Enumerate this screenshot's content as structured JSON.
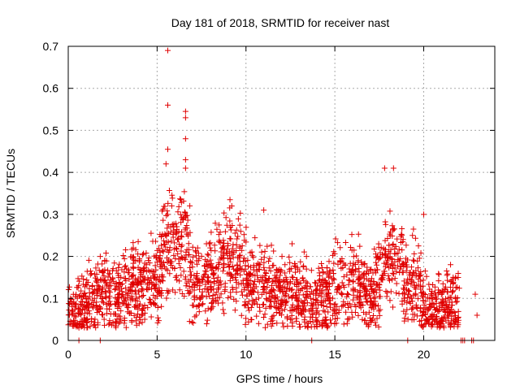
{
  "chart_data": {
    "type": "scatter",
    "title": "Day 181 of 2018, SRMTID for receiver nast",
    "xlabel": "GPS time / hours",
    "ylabel": "SRMTID / TECUs",
    "xlim": [
      0,
      24
    ],
    "ylim": [
      0,
      0.7
    ],
    "xticks": [
      0,
      5,
      10,
      15,
      20
    ],
    "yticks": [
      0,
      0.1,
      0.2,
      0.3,
      0.4,
      0.5,
      0.6,
      0.7
    ],
    "xtick_labels": [
      "0",
      "5",
      "10",
      "15",
      "20"
    ],
    "ytick_labels": [
      "0",
      "0.1",
      "0.2",
      "0.3",
      "0.4",
      "0.5",
      "0.6",
      "0.7"
    ],
    "grid": true,
    "marker": "+",
    "colors": {
      "series": "#e00000",
      "grid": "#aaaaaa",
      "axis": "#000000"
    },
    "series": [
      {
        "name": "SRMTID",
        "profile_x": [
          0,
          0.5,
          1,
          1.5,
          2,
          2.5,
          3,
          3.5,
          4,
          4.5,
          5,
          5.3,
          5.6,
          6,
          6.5,
          7,
          7.5,
          8,
          8.5,
          9,
          9.5,
          10,
          10.5,
          11,
          11.5,
          12,
          12.5,
          13,
          13.5,
          14,
          14.5,
          15,
          15.5,
          16,
          16.5,
          17,
          17.5,
          18,
          18.5,
          19,
          19.5,
          20,
          20.5,
          21,
          21.5,
          22
        ],
        "profile_y": [
          0.07,
          0.06,
          0.08,
          0.09,
          0.11,
          0.09,
          0.11,
          0.13,
          0.12,
          0.14,
          0.15,
          0.19,
          0.23,
          0.22,
          0.24,
          0.15,
          0.13,
          0.15,
          0.17,
          0.2,
          0.19,
          0.15,
          0.13,
          0.14,
          0.12,
          0.11,
          0.12,
          0.11,
          0.09,
          0.08,
          0.1,
          0.13,
          0.14,
          0.14,
          0.12,
          0.11,
          0.15,
          0.2,
          0.2,
          0.16,
          0.14,
          0.08,
          0.07,
          0.08,
          0.09,
          0.08
        ],
        "notable_points": [
          {
            "x": 5.6,
            "y": 0.69
          },
          {
            "x": 5.6,
            "y": 0.56
          },
          {
            "x": 6.6,
            "y": 0.545
          },
          {
            "x": 6.6,
            "y": 0.53
          },
          {
            "x": 6.6,
            "y": 0.48
          },
          {
            "x": 6.6,
            "y": 0.43
          },
          {
            "x": 5.6,
            "y": 0.455
          },
          {
            "x": 5.5,
            "y": 0.42
          },
          {
            "x": 6.6,
            "y": 0.41
          },
          {
            "x": 17.8,
            "y": 0.41
          },
          {
            "x": 18.3,
            "y": 0.41
          },
          {
            "x": 9.1,
            "y": 0.335
          },
          {
            "x": 9.2,
            "y": 0.32
          },
          {
            "x": 11.0,
            "y": 0.31
          },
          {
            "x": 20.0,
            "y": 0.3
          },
          {
            "x": 1.8,
            "y": 0.2
          },
          {
            "x": 22.9,
            "y": 0.11
          },
          {
            "x": 23.0,
            "y": 0.06
          },
          {
            "x": 0.6,
            "y": 0.0
          },
          {
            "x": 1.8,
            "y": 0.0
          },
          {
            "x": 13.7,
            "y": 0.0
          },
          {
            "x": 19.1,
            "y": 0.0
          },
          {
            "x": 22.1,
            "y": 0.0
          },
          {
            "x": 22.2,
            "y": 0.0
          },
          {
            "x": 22.3,
            "y": 0.0
          },
          {
            "x": 22.7,
            "y": 0.0
          },
          {
            "x": 22.8,
            "y": 0.0
          }
        ]
      }
    ]
  }
}
